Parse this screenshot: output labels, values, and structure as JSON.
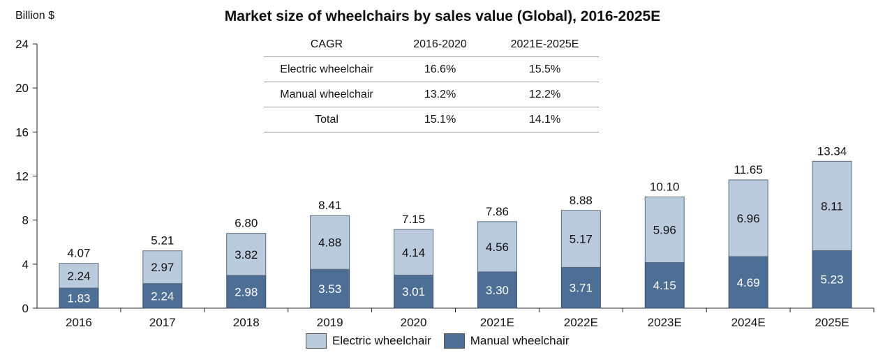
{
  "chart_data": {
    "type": "bar",
    "stacked": true,
    "title": "Market size of wheelchairs by sales value (Global), 2016-2025E",
    "ylabel": "Billion $",
    "xlabel": "",
    "ylim": [
      0,
      24
    ],
    "yticks": [
      "0",
      "4",
      "8",
      "12",
      "16",
      "20",
      "24"
    ],
    "categories": [
      "2016",
      "2017",
      "2018",
      "2019",
      "2020",
      "2021E",
      "2022E",
      "2023E",
      "2024E",
      "2025E"
    ],
    "series": [
      {
        "name": "Manual wheelchair",
        "color": "#4e6f95",
        "values": [
          1.83,
          2.24,
          2.98,
          3.53,
          3.01,
          3.3,
          3.71,
          4.15,
          4.69,
          5.23
        ],
        "labels": [
          "1.83",
          "2.24",
          "2.98",
          "3.53",
          "3.01",
          "3.30",
          "3.71",
          "4.15",
          "4.69",
          "5.23"
        ]
      },
      {
        "name": "Electric wheelchair",
        "color": "#b9cbdc",
        "values": [
          2.24,
          2.97,
          3.82,
          4.88,
          4.14,
          4.56,
          5.17,
          5.96,
          6.96,
          8.11
        ],
        "labels": [
          "2.24",
          "2.97",
          "3.82",
          "4.88",
          "4.14",
          "4.56",
          "5.17",
          "5.96",
          "6.96",
          "8.11"
        ]
      }
    ],
    "totals": [
      4.07,
      5.21,
      6.8,
      8.41,
      7.15,
      7.86,
      8.88,
      10.1,
      11.65,
      13.34
    ],
    "total_labels": [
      "4.07",
      "5.21",
      "6.80",
      "8.41",
      "7.15",
      "7.86",
      "8.88",
      "10.10",
      "11.65",
      "13.34"
    ],
    "legend": [
      "Electric wheelchair",
      "Manual wheelchair"
    ],
    "cagr_table": {
      "headers": [
        "CAGR",
        "2016-2020",
        "2021E-2025E"
      ],
      "rows": [
        [
          "Electric wheelchair",
          "16.6%",
          "15.5%"
        ],
        [
          "Manual wheelchair",
          "13.2%",
          "12.2%"
        ],
        [
          "Total",
          "15.1%",
          "14.1%"
        ]
      ]
    }
  }
}
